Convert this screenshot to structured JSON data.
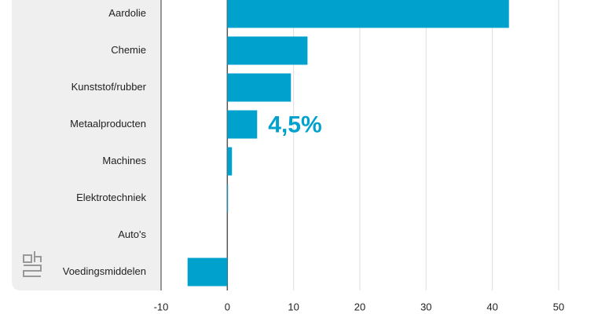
{
  "chart_data": {
    "type": "hbar",
    "categories": [
      "Aardolie",
      "Chemie",
      "Kunststof/rubber",
      "Metaalproducten",
      "Machines",
      "Elektrotechniek",
      "Auto's",
      "Voedingsmiddelen"
    ],
    "values": [
      42.5,
      12.1,
      9.6,
      4.5,
      0.7,
      0.1,
      0,
      -6.0
    ],
    "value_labels": [
      null,
      null,
      null,
      "4,5%",
      null,
      null,
      null,
      null
    ],
    "color": "#00a1cd",
    "xlim": [
      -10,
      57
    ],
    "xticks": [
      -10,
      0,
      10,
      20,
      30,
      40,
      50
    ],
    "grid": true
  }
}
